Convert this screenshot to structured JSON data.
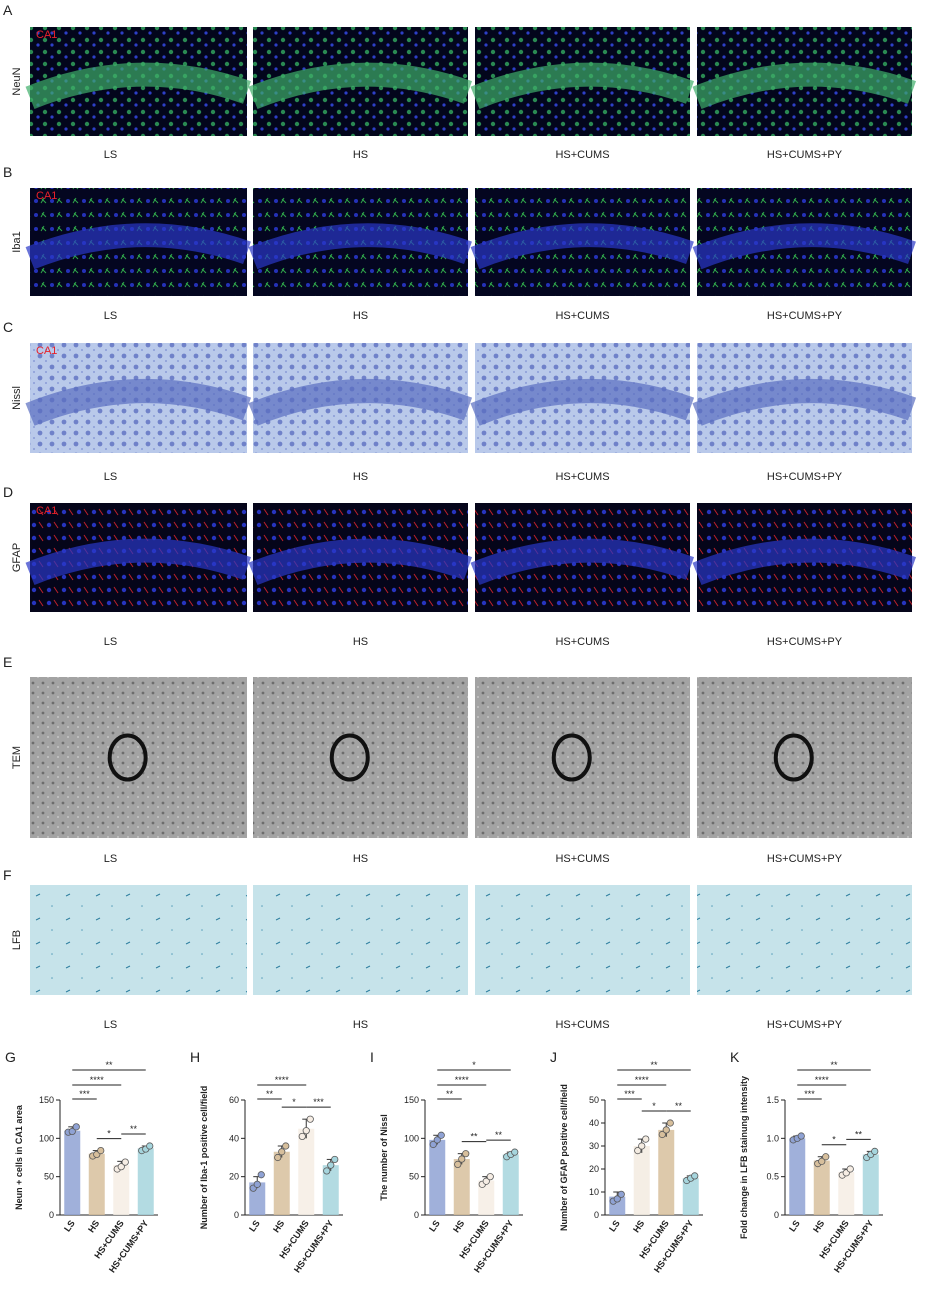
{
  "figure": {
    "panels": [
      {
        "letter": "A",
        "stain": "NeuN",
        "region": "CA1"
      },
      {
        "letter": "B",
        "stain": "Iba1",
        "region": "CA1"
      },
      {
        "letter": "C",
        "stain": "Nissl",
        "region": "CA1"
      },
      {
        "letter": "D",
        "stain": "GFAP",
        "region": "CA1"
      },
      {
        "letter": "E",
        "stain": "TEM"
      },
      {
        "letter": "F",
        "stain": "LFB"
      }
    ],
    "groups": [
      "LS",
      "HS",
      "HS+CUMS",
      "HS+CUMS+PY"
    ]
  },
  "chart_data": [
    {
      "type": "bar",
      "letter": "G",
      "y_label": "Neun + cells in CA1 area",
      "categories": [
        "LS",
        "HS",
        "HS+CUMS",
        "HS+CUMS+PY"
      ],
      "values": [
        110,
        80,
        65,
        87
      ],
      "errors": [
        5,
        4,
        5,
        3
      ],
      "points": [
        [
          108,
          109,
          115
        ],
        [
          77,
          79,
          84
        ],
        [
          60,
          63,
          69
        ],
        [
          84,
          86,
          90
        ]
      ],
      "colors": [
        "#8fa2d4",
        "#d7bf9c",
        "#f6ede4",
        "#a6d5dd"
      ],
      "ylim": [
        0,
        150
      ],
      "yticks": [
        0,
        50,
        100,
        150
      ],
      "significance": [
        {
          "from": "LS",
          "to": "HS+CUMS+PY",
          "label": "**"
        },
        {
          "from": "LS",
          "to": "HS+CUMS",
          "label": "****"
        },
        {
          "from": "LS",
          "to": "HS",
          "label": "***"
        },
        {
          "from": "HS",
          "to": "HS+CUMS",
          "label": "*"
        },
        {
          "from": "HS+CUMS",
          "to": "HS+CUMS+PY",
          "label": "**"
        }
      ]
    },
    {
      "type": "bar",
      "letter": "H",
      "y_label": "Number of Iba-1 positive cell/field",
      "categories": [
        "LS",
        "HS",
        "HS+CUMS",
        "HS+CUMS+PY"
      ],
      "values": [
        17,
        33,
        45,
        26
      ],
      "errors": [
        3,
        3,
        5,
        3
      ],
      "points": [
        [
          14,
          16,
          21
        ],
        [
          30,
          33,
          36
        ],
        [
          41,
          44,
          50
        ],
        [
          23,
          26,
          29
        ]
      ],
      "colors": [
        "#8fa2d4",
        "#d7bf9c",
        "#f6ede4",
        "#a6d5dd"
      ],
      "ylim": [
        0,
        60
      ],
      "yticks": [
        0,
        20,
        40,
        60
      ],
      "significance": [
        {
          "from": "LS",
          "to": "HS+CUMS",
          "label": "****"
        },
        {
          "from": "HS",
          "to": "HS+CUMS",
          "label": "*"
        },
        {
          "from": "HS+CUMS",
          "to": "HS+CUMS+PY",
          "label": "***"
        },
        {
          "from": "LS",
          "to": "HS",
          "label": "**"
        }
      ]
    },
    {
      "type": "bar",
      "letter": "I",
      "y_label": "The number of Nissl",
      "categories": [
        "LS",
        "HS",
        "HS+CUMS",
        "HS+CUMS+PY"
      ],
      "values": [
        98,
        73,
        45,
        79
      ],
      "errors": [
        6,
        7,
        5,
        3
      ],
      "points": [
        [
          92,
          98,
          104
        ],
        [
          66,
          73,
          80
        ],
        [
          40,
          44,
          50
        ],
        [
          76,
          79,
          82
        ]
      ],
      "colors": [
        "#8fa2d4",
        "#d7bf9c",
        "#f6ede4",
        "#a6d5dd"
      ],
      "ylim": [
        0,
        150
      ],
      "yticks": [
        0,
        50,
        100,
        150
      ],
      "significance": [
        {
          "from": "LS",
          "to": "HS+CUMS+PY",
          "label": "*"
        },
        {
          "from": "LS",
          "to": "HS+CUMS",
          "label": "****"
        },
        {
          "from": "LS",
          "to": "HS",
          "label": "**"
        },
        {
          "from": "HS",
          "to": "HS+CUMS",
          "label": "**"
        },
        {
          "from": "HS+CUMS",
          "to": "HS+CUMS+PY",
          "label": "**"
        }
      ]
    },
    {
      "type": "bar",
      "letter": "J",
      "y_label": "Number of GFAP positive cell/field",
      "categories": [
        "LS",
        "HS",
        "HS+CUMS",
        "HS+CUMS+PY"
      ],
      "values": [
        8,
        30,
        37,
        16
      ],
      "errors": [
        2,
        3,
        3,
        1
      ],
      "points": [
        [
          6,
          7,
          9
        ],
        [
          28,
          30,
          33
        ],
        [
          35,
          37,
          40
        ],
        [
          15,
          16,
          17
        ]
      ],
      "colors": [
        "#8fa2d4",
        "#f3ebe1",
        "#d7bf9c",
        "#a6d5dd"
      ],
      "ylim": [
        0,
        50
      ],
      "yticks": [
        0,
        10,
        20,
        30,
        40,
        50
      ],
      "significance": [
        {
          "from": "LS",
          "to": "HS+CUMS+PY",
          "label": "**"
        },
        {
          "from": "LS",
          "to": "HS+CUMS",
          "label": "****"
        },
        {
          "from": "LS",
          "to": "HS",
          "label": "***"
        },
        {
          "from": "HS",
          "to": "HS+CUMS",
          "label": "*"
        },
        {
          "from": "HS+CUMS",
          "to": "HS+CUMS+PY",
          "label": "**"
        }
      ]
    },
    {
      "type": "bar",
      "letter": "K",
      "y_label": "Fold change in LFB stainung intensity",
      "categories": [
        "LS",
        "HS",
        "HS+CUMS",
        "HS+CUMS+PY"
      ],
      "values": [
        1.0,
        0.71,
        0.56,
        0.79
      ],
      "errors": [
        0.03,
        0.05,
        0.04,
        0.04
      ],
      "points": [
        [
          0.98,
          1.0,
          1.03
        ],
        [
          0.67,
          0.7,
          0.76
        ],
        [
          0.52,
          0.55,
          0.6
        ],
        [
          0.75,
          0.79,
          0.83
        ]
      ],
      "colors": [
        "#8fa2d4",
        "#d7bf9c",
        "#f6ede4",
        "#a6d5dd"
      ],
      "ylim": [
        0,
        1.5
      ],
      "yticks": [
        0,
        0.5,
        {
          "value": 1,
          "label": "1.0"
        },
        1.5
      ],
      "significance": [
        {
          "from": "LS",
          "to": "HS+CUMS+PY",
          "label": "**"
        },
        {
          "from": "LS",
          "to": "HS+CUMS",
          "label": "****"
        },
        {
          "from": "LS",
          "to": "HS",
          "label": "***"
        },
        {
          "from": "HS",
          "to": "HS+CUMS",
          "label": "*"
        },
        {
          "from": "HS+CUMS",
          "to": "HS+CUMS+PY",
          "label": "**"
        }
      ]
    }
  ]
}
